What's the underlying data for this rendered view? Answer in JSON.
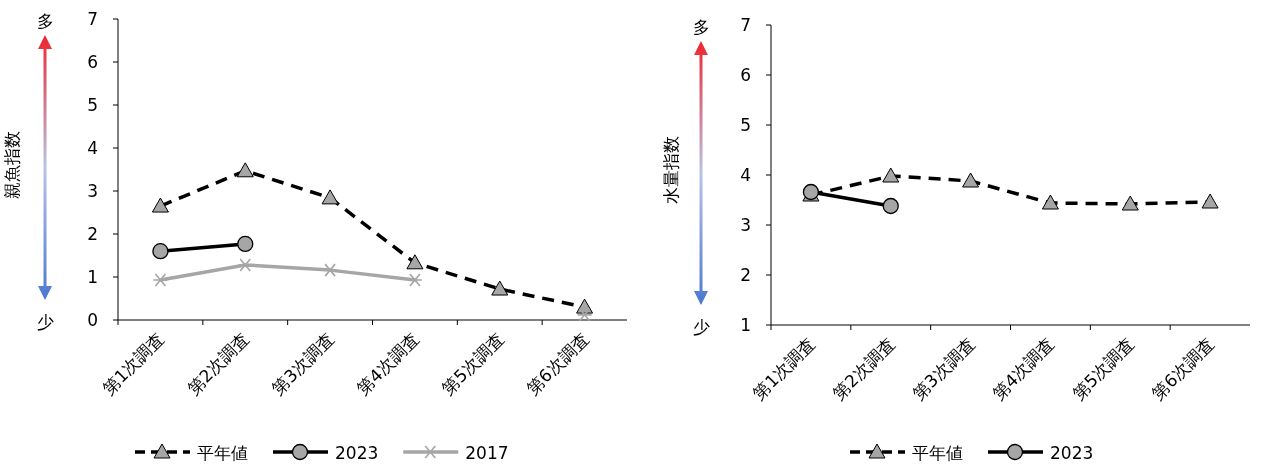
{
  "chart_data": [
    {
      "type": "line",
      "ylabel": "親魚指数",
      "categories": [
        "第1次調査",
        "第2次調査",
        "第3次調査",
        "第4次調査",
        "第5次調査",
        "第6次調査"
      ],
      "ylim": [
        0,
        7
      ],
      "yticks": [
        0,
        1,
        2,
        3,
        4,
        5,
        6,
        7
      ],
      "legend": "bottom",
      "annotations": [
        "多",
        "少"
      ],
      "series": [
        {
          "name": "平年値",
          "color": "#000000",
          "line_style": "dashed",
          "marker": "triangle",
          "values": [
            2.65,
            3.47,
            2.84,
            1.33,
            0.72,
            0.3
          ]
        },
        {
          "name": "2023",
          "color": "#000000",
          "line_style": "solid",
          "marker": "circle",
          "values": [
            1.6,
            1.77,
            null,
            null,
            null,
            null
          ]
        },
        {
          "name": "2017",
          "color": "#a6a6a6",
          "line_style": "solid",
          "marker": "cross",
          "values": [
            0.93,
            1.28,
            1.16,
            0.93,
            null,
            0.12
          ]
        }
      ]
    },
    {
      "type": "line",
      "ylabel": "水量指数",
      "categories": [
        "第1次調査",
        "第2次調査",
        "第3次調査",
        "第4次調査",
        "第5次調査",
        "第6次調査"
      ],
      "ylim": [
        1,
        7
      ],
      "yticks": [
        1,
        2,
        3,
        4,
        5,
        6,
        7
      ],
      "legend": "bottom",
      "annotations": [
        "多",
        "少"
      ],
      "series": [
        {
          "name": "平年値",
          "color": "#000000",
          "line_style": "dashed",
          "marker": "triangle",
          "values": [
            3.6,
            3.98,
            3.88,
            3.44,
            3.42,
            3.46
          ]
        },
        {
          "name": "2023",
          "color": "#000000",
          "line_style": "solid",
          "marker": "circle",
          "values": [
            3.66,
            3.38,
            null,
            null,
            null,
            null
          ]
        }
      ]
    }
  ]
}
